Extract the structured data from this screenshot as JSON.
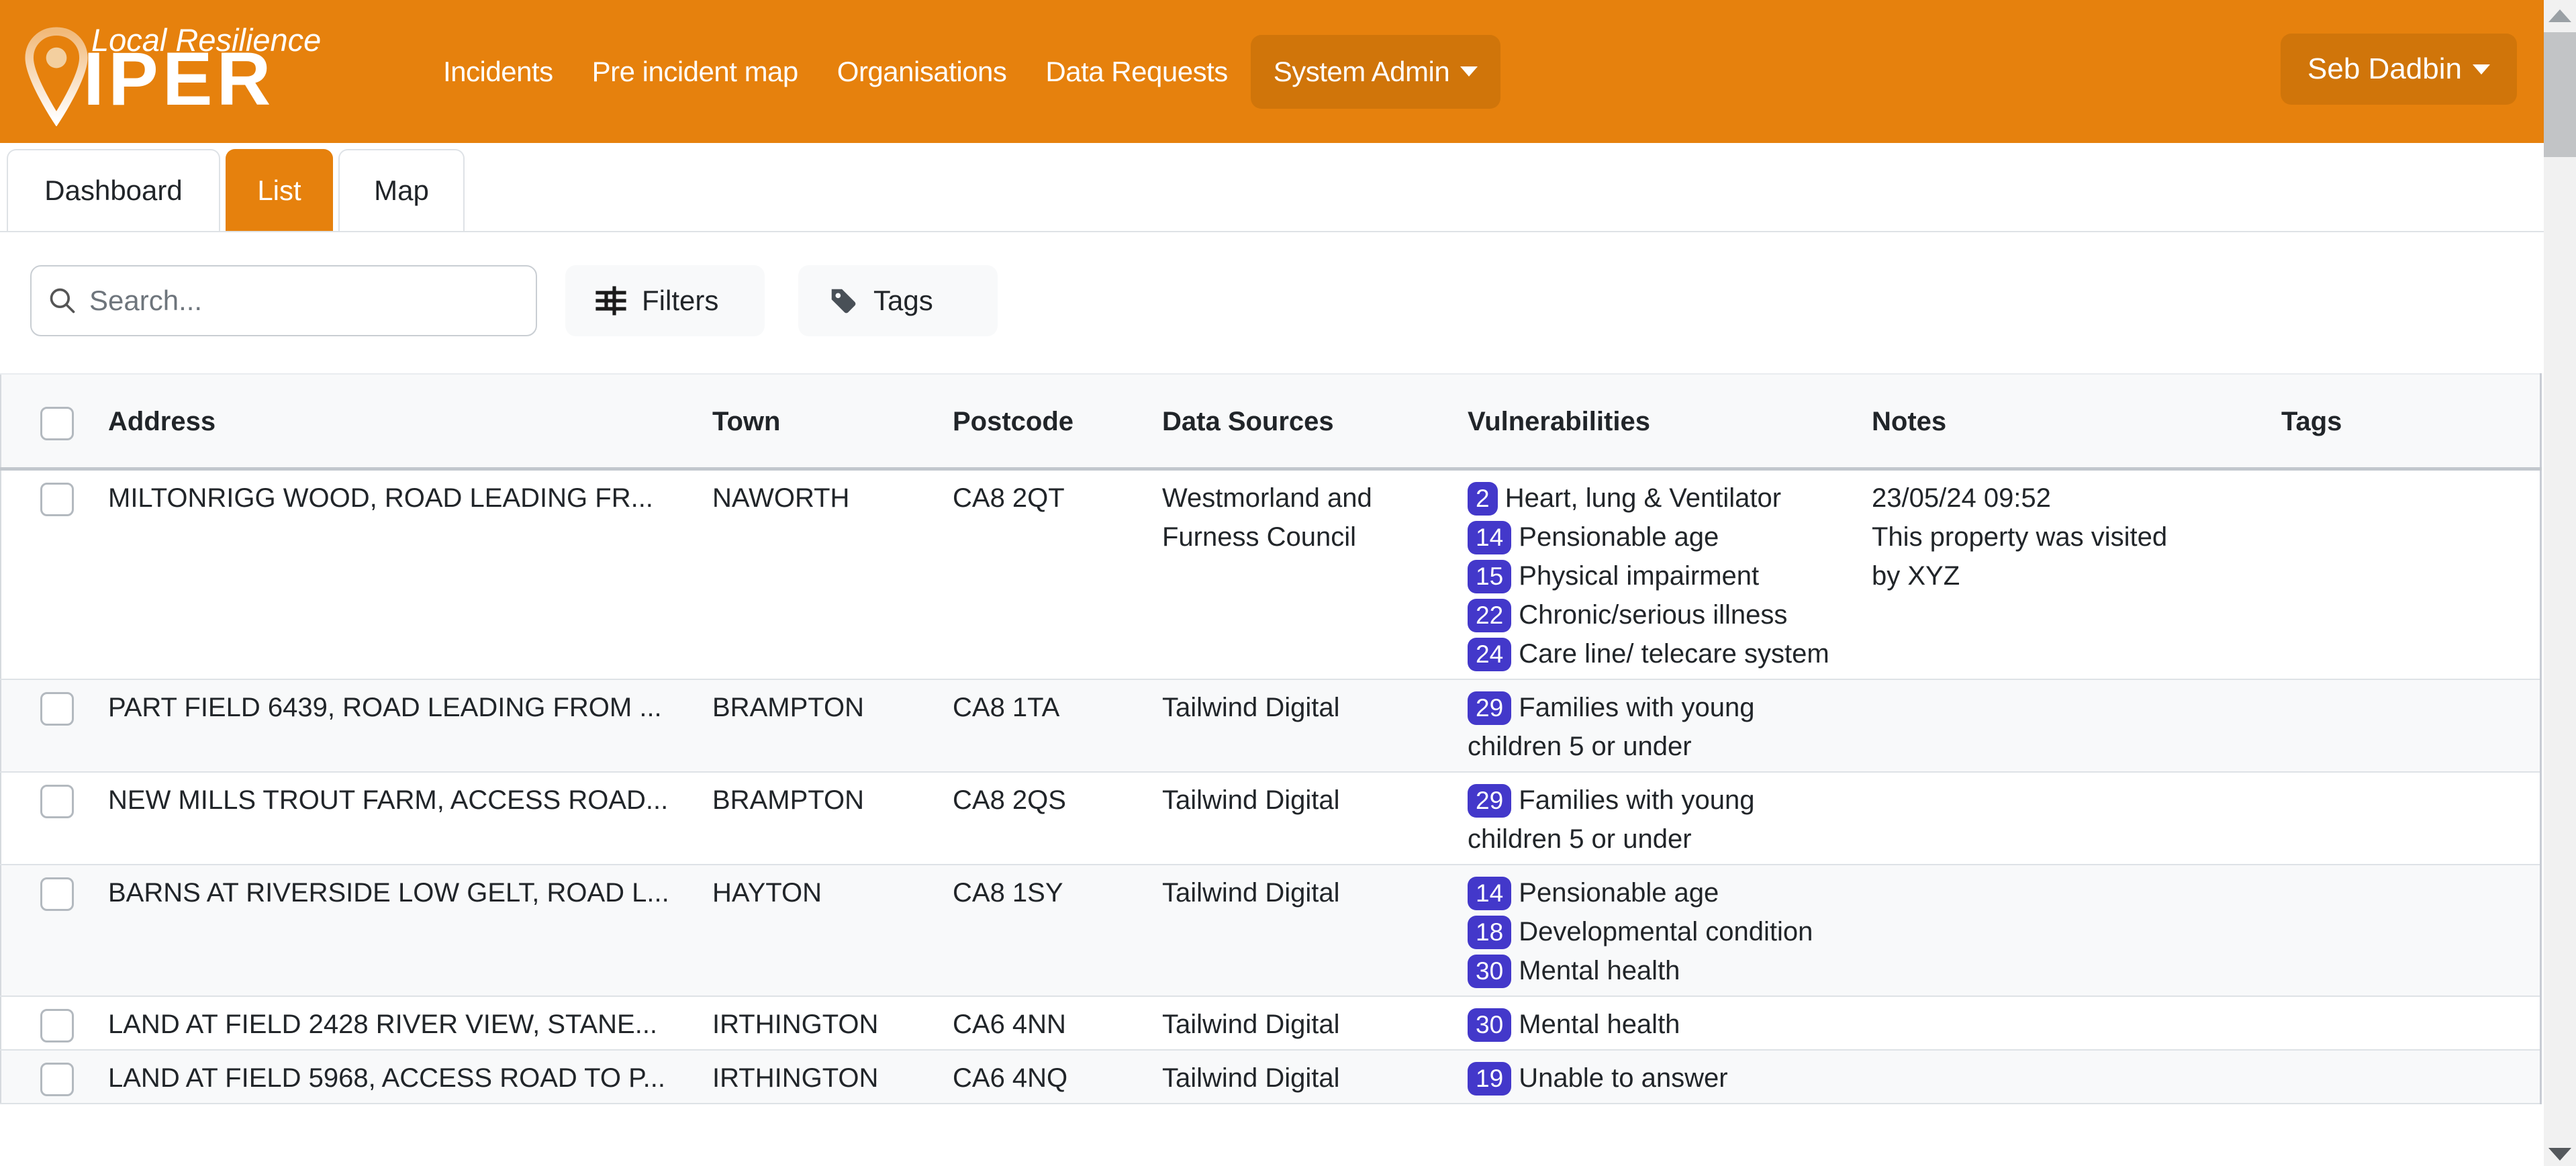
{
  "brand": {
    "tagline": "Local Resilience",
    "name": "VIPER",
    "wordmark_letters": "IPER"
  },
  "nav": {
    "items": [
      {
        "label": "Incidents",
        "style": "link"
      },
      {
        "label": "Pre incident map",
        "style": "link"
      },
      {
        "label": "Organisations",
        "style": "link"
      },
      {
        "label": "Data Requests",
        "style": "link"
      },
      {
        "label": "System Admin",
        "style": "pill",
        "dropdown": true
      }
    ],
    "user": {
      "label": "Seb Dadbin",
      "dropdown": true
    }
  },
  "tabs": [
    {
      "label": "Dashboard",
      "active": false
    },
    {
      "label": "List",
      "active": true
    },
    {
      "label": "Map",
      "active": false
    }
  ],
  "toolbar": {
    "search_placeholder": "Search...",
    "search_value": "",
    "filters_label": "Filters",
    "tags_label": "Tags"
  },
  "table": {
    "columns": [
      "Address",
      "Town",
      "Postcode",
      "Data Sources",
      "Vulnerabilities",
      "Notes",
      "Tags"
    ],
    "rows": [
      {
        "address": "MILTONRIGG WOOD, ROAD LEADING FR...",
        "town": "NAWORTH",
        "postcode": "CA8 2QT",
        "data_source": "Westmorland and Furness Council",
        "vulnerabilities": [
          {
            "code": "2",
            "label": "Heart, lung & Ventilator"
          },
          {
            "code": "14",
            "label": "Pensionable age"
          },
          {
            "code": "15",
            "label": "Physical impairment"
          },
          {
            "code": "22",
            "label": "Chronic/serious illness"
          },
          {
            "code": "24",
            "label": "Care line/ telecare system"
          }
        ],
        "notes": [
          "23/05/24 09:52",
          "This property was visited",
          "by XYZ"
        ],
        "tags": []
      },
      {
        "address": "PART FIELD 6439, ROAD LEADING FROM ...",
        "town": "BRAMPTON",
        "postcode": "CA8 1TA",
        "data_source": "Tailwind Digital",
        "vulnerabilities": [
          {
            "code": "29",
            "label": "Families with young children 5 or under"
          }
        ],
        "notes": [],
        "tags": []
      },
      {
        "address": "NEW MILLS TROUT FARM, ACCESS ROAD...",
        "town": "BRAMPTON",
        "postcode": "CA8 2QS",
        "data_source": "Tailwind Digital",
        "vulnerabilities": [
          {
            "code": "29",
            "label": "Families with young children 5 or under"
          }
        ],
        "notes": [],
        "tags": []
      },
      {
        "address": "BARNS AT RIVERSIDE LOW GELT, ROAD L...",
        "town": "HAYTON",
        "postcode": "CA8 1SY",
        "data_source": "Tailwind Digital",
        "vulnerabilities": [
          {
            "code": "14",
            "label": "Pensionable age"
          },
          {
            "code": "18",
            "label": "Developmental condition"
          },
          {
            "code": "30",
            "label": "Mental health"
          }
        ],
        "notes": [],
        "tags": []
      },
      {
        "address": "LAND AT FIELD 2428 RIVER VIEW, STANE...",
        "town": "IRTHINGTON",
        "postcode": "CA6 4NN",
        "data_source": "Tailwind Digital",
        "vulnerabilities": [
          {
            "code": "30",
            "label": "Mental health"
          }
        ],
        "notes": [],
        "tags": []
      },
      {
        "address": "LAND AT FIELD 5968, ACCESS ROAD TO P...",
        "town": "IRTHINGTON",
        "postcode": "CA6 4NQ",
        "data_source": "Tailwind Digital",
        "vulnerabilities": [
          {
            "code": "19",
            "label": "Unable to answer"
          }
        ],
        "notes": [],
        "tags": []
      }
    ]
  },
  "colors": {
    "accent_orange": "#e6810d",
    "accent_orange_dark": "#d0750a",
    "badge_indigo": "#4338ca",
    "table_stripe": "#f8f9fa"
  }
}
